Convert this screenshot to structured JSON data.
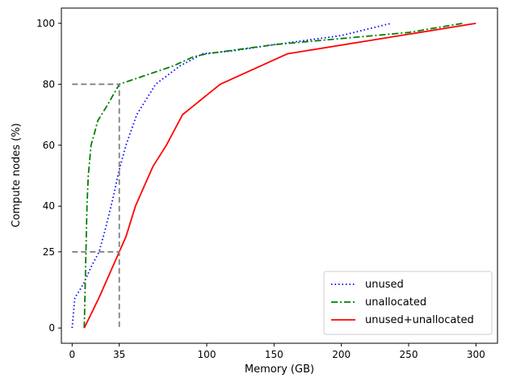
{
  "chart_data": {
    "type": "line",
    "title": "",
    "xlabel": "Memory (GB)",
    "ylabel": "Compute nodes (%)",
    "xlim": [
      -8,
      316
    ],
    "ylim": [
      -5,
      105
    ],
    "xticks": [
      0,
      35,
      100,
      150,
      200,
      250,
      300
    ],
    "xtick_labels": [
      "0",
      "35",
      "100",
      "150",
      "200",
      "250",
      "300"
    ],
    "yticks": [
      0,
      25,
      40,
      60,
      80,
      100
    ],
    "ytick_labels": [
      "0",
      "25",
      "40",
      "60",
      "80",
      "100"
    ],
    "grid": false,
    "legend_position": "lower-right",
    "series": [
      {
        "name": "unused",
        "color": "#0000ff",
        "style": "dotted",
        "x": [
          0,
          2,
          5,
          9,
          14,
          20,
          25,
          30,
          35,
          40,
          48,
          62,
          80,
          97,
          120,
          150,
          200,
          237
        ],
        "y": [
          0,
          10,
          12,
          15,
          20,
          25,
          33,
          42,
          52,
          60,
          70,
          80,
          86,
          90,
          91,
          93,
          96,
          100
        ]
      },
      {
        "name": "unallocated",
        "color": "#008000",
        "style": "dashdot",
        "x": [
          9,
          10,
          11,
          12,
          14,
          16,
          19,
          26,
          35,
          55,
          75,
          90,
          100,
          150,
          200,
          250,
          290
        ],
        "y": [
          0,
          20,
          40,
          50,
          60,
          63,
          68,
          73,
          80,
          83,
          86,
          89,
          90,
          93,
          95,
          97,
          100
        ]
      },
      {
        "name": "unused+unallocated",
        "color": "#ff0000",
        "style": "solid",
        "x": [
          9,
          20,
          28,
          35,
          40,
          47,
          55,
          60,
          70,
          82,
          110,
          160,
          300
        ],
        "y": [
          0,
          10,
          18,
          25,
          30,
          40,
          48,
          53,
          60,
          70,
          80,
          90,
          100
        ]
      },
      {
        "name": "",
        "color": "#808080",
        "style": "dashed",
        "x": [
          0,
          35,
          35
        ],
        "y": [
          80,
          80,
          0
        ]
      },
      {
        "name": "",
        "color": "#808080",
        "style": "dashed",
        "x": [
          0,
          35
        ],
        "y": [
          25,
          25
        ]
      }
    ]
  }
}
